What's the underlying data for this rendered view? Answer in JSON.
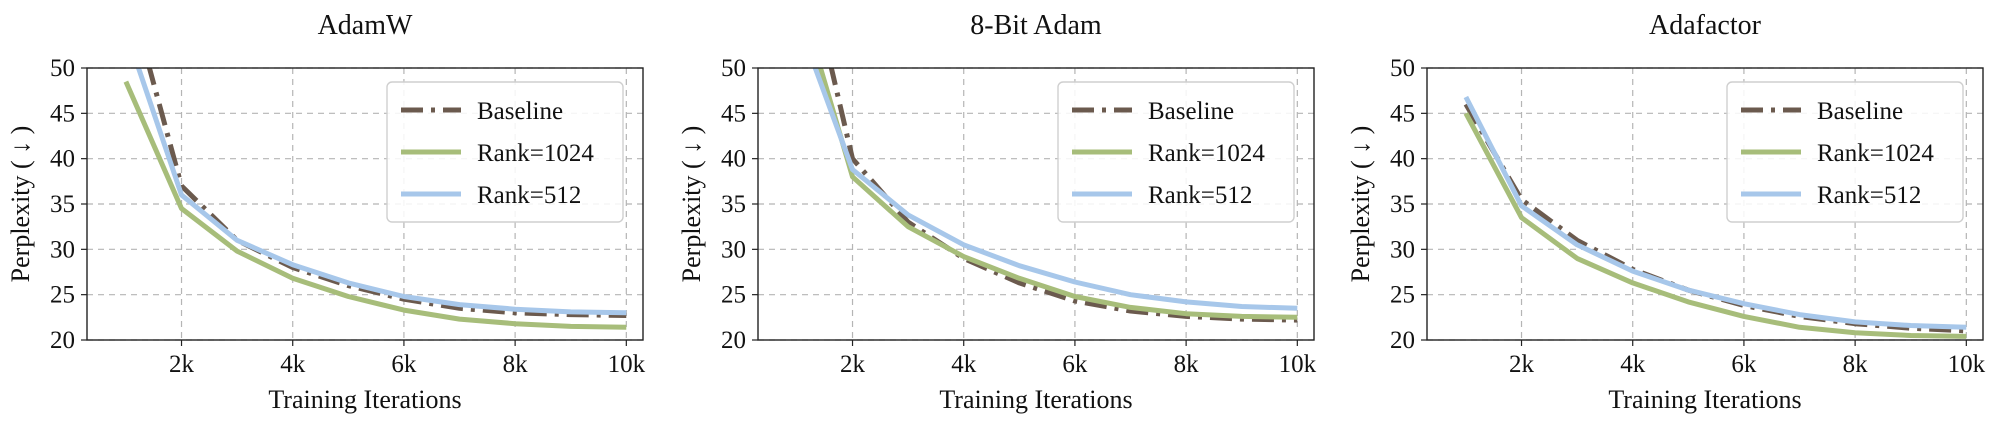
{
  "colors": {
    "baseline": "#6b5a4e",
    "rank1024": "#a7bd7a",
    "rank512": "#a7c7ea"
  },
  "chart_data": [
    {
      "type": "line",
      "title": "AdamW",
      "xlabel": "Training Iterations",
      "ylabel": "Perplexity ( ↓ )",
      "xlim": [
        300,
        10300
      ],
      "ylim": [
        20,
        50
      ],
      "xticks": [
        2000,
        4000,
        6000,
        8000,
        10000
      ],
      "xticklabels": [
        "2k",
        "4k",
        "6k",
        "8k",
        "10k"
      ],
      "yticks": [
        20,
        25,
        30,
        35,
        40,
        45,
        50
      ],
      "yticklabels": [
        "20",
        "25",
        "30",
        "35",
        "40",
        "45",
        "50"
      ],
      "grid": true,
      "legend": "top-right",
      "series": [
        {
          "name": "Baseline",
          "key": "baseline",
          "style": "dashdot",
          "x": [
            1400,
            2000,
            3000,
            4000,
            5000,
            6000,
            7000,
            8000,
            9000,
            10000
          ],
          "y": [
            50.5,
            37.0,
            31.0,
            28.0,
            26.0,
            24.5,
            23.5,
            23.0,
            22.8,
            22.7
          ]
        },
        {
          "name": "Rank=1024",
          "key": "rank1024",
          "style": "solid",
          "x": [
            1000,
            2000,
            3000,
            4000,
            5000,
            6000,
            7000,
            8000,
            9000,
            10000
          ],
          "y": [
            48.5,
            34.5,
            29.8,
            26.8,
            24.8,
            23.3,
            22.3,
            21.8,
            21.5,
            21.4
          ]
        },
        {
          "name": "Rank=512",
          "key": "rank512",
          "style": "solid",
          "x": [
            1200,
            2000,
            3000,
            4000,
            5000,
            6000,
            7000,
            8000,
            9000,
            10000
          ],
          "y": [
            50.5,
            36.0,
            31.0,
            28.3,
            26.3,
            24.8,
            23.9,
            23.4,
            23.1,
            23.0
          ]
        }
      ]
    },
    {
      "type": "line",
      "title": "8-Bit Adam",
      "xlabel": "Training Iterations",
      "ylabel": "Perplexity ( ↓ )",
      "xlim": [
        300,
        10300
      ],
      "ylim": [
        20,
        50
      ],
      "xticks": [
        2000,
        4000,
        6000,
        8000,
        10000
      ],
      "xticklabels": [
        "2k",
        "4k",
        "6k",
        "8k",
        "10k"
      ],
      "yticks": [
        20,
        25,
        30,
        35,
        40,
        45,
        50
      ],
      "yticklabels": [
        "20",
        "25",
        "30",
        "35",
        "40",
        "45",
        "50"
      ],
      "grid": true,
      "legend": "top-right",
      "series": [
        {
          "name": "Baseline",
          "key": "baseline",
          "style": "dashdot",
          "x": [
            1600,
            2000,
            3000,
            4000,
            5000,
            6000,
            7000,
            8000,
            9000,
            10000
          ],
          "y": [
            50.5,
            40.0,
            33.0,
            29.0,
            26.3,
            24.3,
            23.2,
            22.6,
            22.3,
            22.2
          ]
        },
        {
          "name": "Rank=1024",
          "key": "rank1024",
          "style": "solid",
          "x": [
            1400,
            2000,
            3000,
            4000,
            5000,
            6000,
            7000,
            8000,
            9000,
            10000
          ],
          "y": [
            50.5,
            38.0,
            32.5,
            29.2,
            26.8,
            24.8,
            23.6,
            22.9,
            22.6,
            22.5
          ]
        },
        {
          "name": "Rank=512",
          "key": "rank512",
          "style": "solid",
          "x": [
            1300,
            2000,
            3000,
            4000,
            5000,
            6000,
            7000,
            8000,
            9000,
            10000
          ],
          "y": [
            50.5,
            38.8,
            33.8,
            30.5,
            28.2,
            26.4,
            25.0,
            24.2,
            23.7,
            23.5
          ]
        }
      ]
    },
    {
      "type": "line",
      "title": "Adafactor",
      "xlabel": "Training Iterations",
      "ylabel": "Perplexity ( ↓ )",
      "xlim": [
        300,
        10300
      ],
      "ylim": [
        20,
        50
      ],
      "xticks": [
        2000,
        4000,
        6000,
        8000,
        10000
      ],
      "xticklabels": [
        "2k",
        "4k",
        "6k",
        "8k",
        "10k"
      ],
      "yticks": [
        20,
        25,
        30,
        35,
        40,
        45,
        50
      ],
      "yticklabels": [
        "20",
        "25",
        "30",
        "35",
        "40",
        "45",
        "50"
      ],
      "grid": true,
      "legend": "top-right",
      "series": [
        {
          "name": "Baseline",
          "key": "baseline",
          "style": "dashdot",
          "x": [
            1000,
            2000,
            3000,
            4000,
            5000,
            6000,
            7000,
            8000,
            9000,
            10000
          ],
          "y": [
            46.0,
            35.5,
            31.0,
            27.8,
            25.5,
            23.8,
            22.6,
            21.8,
            21.3,
            21.0
          ]
        },
        {
          "name": "Rank=1024",
          "key": "rank1024",
          "style": "solid",
          "x": [
            1000,
            2000,
            3000,
            4000,
            5000,
            6000,
            7000,
            8000,
            9000,
            10000
          ],
          "y": [
            45.0,
            33.5,
            29.0,
            26.3,
            24.2,
            22.6,
            21.4,
            20.8,
            20.5,
            20.4
          ]
        },
        {
          "name": "Rank=512",
          "key": "rank512",
          "style": "solid",
          "x": [
            1000,
            2000,
            3000,
            4000,
            5000,
            6000,
            7000,
            8000,
            9000,
            10000
          ],
          "y": [
            46.8,
            34.8,
            30.5,
            27.6,
            25.5,
            24.0,
            22.8,
            22.0,
            21.6,
            21.4
          ]
        }
      ]
    }
  ]
}
